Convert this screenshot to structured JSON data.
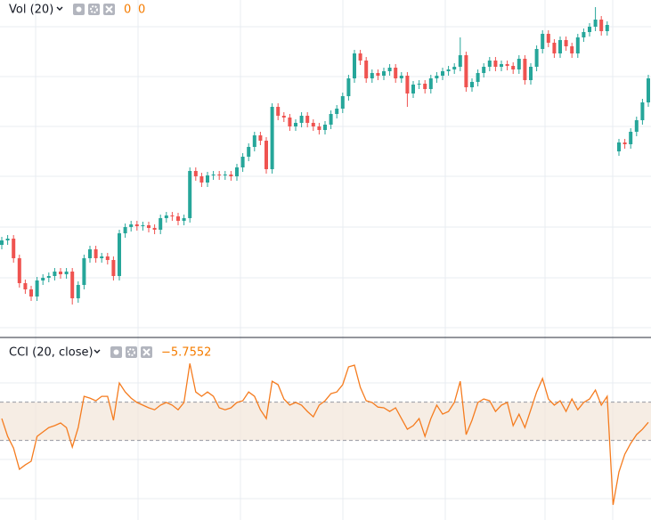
{
  "chart_data": [
    {
      "type": "candlestick",
      "title": "Vol (20)",
      "vol_values": [
        0,
        0
      ],
      "up_color": "#26a69a",
      "down_color": "#ef5350",
      "ylim": [
        0,
        370
      ],
      "open": [
        95,
        100,
        102,
        80,
        52,
        45,
        37,
        55,
        58,
        60,
        65,
        62,
        65,
        35,
        50,
        80,
        90,
        80,
        82,
        78,
        60,
        108,
        115,
        118,
        116,
        117,
        114,
        112,
        125,
        128,
        127,
        122,
        125,
        178,
        172,
        165,
        173,
        174,
        173,
        174,
        172,
        182,
        194,
        205,
        218,
        212,
        180,
        250,
        240,
        238,
        228,
        232,
        240,
        232,
        228,
        224,
        230,
        242,
        248,
        262,
        282,
        310,
        302,
        282,
        288,
        285,
        290,
        294,
        282,
        285,
        265,
        275,
        276,
        270,
        282,
        285,
        290,
        292,
        295,
        308,
        272,
        278,
        288,
        295,
        302,
        295,
        298,
        296,
        292,
        304,
        280,
        295,
        315,
        332,
        322,
        310,
        325,
        318,
        310,
        328,
        334,
        340,
        348,
        335,
        null,
        200,
        210,
        208,
        222,
        235,
        255
      ],
      "high": [
        104,
        106,
        106,
        84,
        56,
        49,
        59,
        62,
        64,
        69,
        69,
        69,
        69,
        54,
        84,
        94,
        94,
        86,
        86,
        82,
        112,
        119,
        122,
        122,
        121,
        121,
        118,
        129,
        132,
        132,
        131,
        129,
        182,
        182,
        176,
        177,
        178,
        178,
        178,
        178,
        186,
        198,
        209,
        222,
        222,
        216,
        254,
        254,
        244,
        242,
        236,
        244,
        244,
        236,
        232,
        234,
        246,
        252,
        266,
        286,
        314,
        314,
        306,
        292,
        292,
        294,
        298,
        298,
        289,
        289,
        279,
        280,
        280,
        286,
        289,
        294,
        296,
        299,
        328,
        312,
        282,
        292,
        299,
        306,
        306,
        302,
        302,
        300,
        308,
        308,
        299,
        319,
        336,
        336,
        326,
        329,
        329,
        322,
        332,
        338,
        344,
        362,
        352,
        346,
        null,
        214,
        214,
        226,
        239,
        259,
        286
      ],
      "low": [
        90,
        95,
        75,
        47,
        40,
        32,
        32,
        50,
        53,
        55,
        57,
        57,
        28,
        30,
        45,
        75,
        75,
        75,
        73,
        55,
        55,
        103,
        110,
        111,
        111,
        109,
        107,
        107,
        120,
        122,
        117,
        117,
        120,
        167,
        160,
        160,
        168,
        168,
        168,
        167,
        167,
        177,
        189,
        200,
        207,
        175,
        175,
        235,
        233,
        223,
        223,
        227,
        227,
        223,
        219,
        219,
        225,
        237,
        243,
        257,
        277,
        297,
        277,
        277,
        280,
        280,
        285,
        277,
        277,
        250,
        260,
        270,
        265,
        265,
        277,
        280,
        285,
        287,
        290,
        267,
        267,
        273,
        283,
        290,
        290,
        290,
        291,
        287,
        287,
        275,
        275,
        290,
        310,
        317,
        305,
        305,
        313,
        305,
        305,
        323,
        329,
        335,
        330,
        330,
        null,
        195,
        203,
        203,
        217,
        230,
        250
      ],
      "close": [
        100,
        102,
        80,
        52,
        45,
        37,
        55,
        58,
        60,
        65,
        62,
        65,
        35,
        50,
        80,
        90,
        80,
        82,
        78,
        60,
        108,
        115,
        118,
        116,
        117,
        114,
        112,
        125,
        128,
        127,
        122,
        125,
        178,
        172,
        165,
        173,
        174,
        173,
        174,
        172,
        182,
        194,
        205,
        218,
        212,
        180,
        250,
        240,
        238,
        228,
        232,
        240,
        232,
        228,
        224,
        230,
        242,
        248,
        262,
        282,
        310,
        302,
        282,
        288,
        285,
        290,
        294,
        282,
        285,
        265,
        275,
        276,
        270,
        282,
        285,
        290,
        292,
        295,
        308,
        272,
        278,
        288,
        295,
        302,
        295,
        298,
        296,
        292,
        304,
        280,
        295,
        315,
        332,
        322,
        310,
        325,
        318,
        310,
        328,
        334,
        340,
        348,
        335,
        342,
        null,
        210,
        208,
        222,
        235,
        255,
        282
      ]
    },
    {
      "type": "line",
      "title": "CCI (20, close)",
      "color": "#f57c1f",
      "ylim": [
        -516,
        433
      ],
      "bands": [
        -100,
        100
      ],
      "band_color": "#f2e6d9",
      "last_value_label": "−5.7552",
      "values": [
        14,
        -79,
        -140,
        -251,
        -228,
        -209,
        -79,
        -56,
        -33,
        -23,
        -9,
        -33,
        -135,
        -33,
        130,
        121,
        107,
        130,
        130,
        5,
        200,
        153,
        121,
        98,
        84,
        70,
        60,
        84,
        98,
        84,
        60,
        98,
        302,
        153,
        130,
        153,
        130,
        70,
        60,
        70,
        98,
        107,
        153,
        130,
        60,
        14,
        209,
        191,
        116,
        84,
        98,
        84,
        51,
        23,
        84,
        107,
        144,
        153,
        191,
        284,
        293,
        177,
        107,
        98,
        74,
        70,
        51,
        70,
        14,
        -42,
        -23,
        14,
        -79,
        14,
        84,
        37,
        51,
        98,
        209,
        -70,
        5,
        98,
        116,
        107,
        51,
        84,
        98,
        -23,
        37,
        -33,
        60,
        153,
        223,
        116,
        84,
        107,
        51,
        116,
        60,
        98,
        116,
        163,
        84,
        130,
        -437,
        -265,
        -172,
        -116,
        -70,
        -42,
        -5.7552
      ]
    }
  ]
}
